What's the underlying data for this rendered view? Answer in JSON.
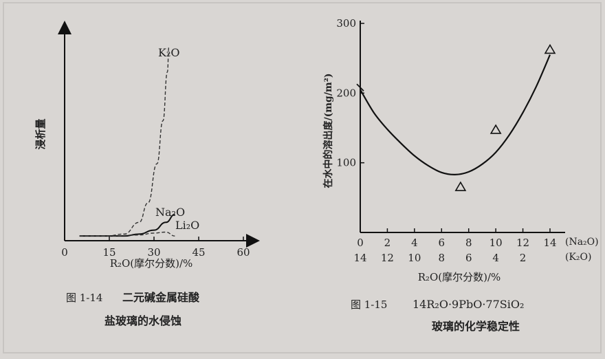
{
  "chart_data": [
    {
      "type": "line",
      "figure_caption_number": "图 1-14",
      "figure_caption_line1": "二元碱金属硅酸",
      "figure_caption_line2": "盐玻璃的水侵蚀",
      "xlabel": "R₂O(摩尔分数)/%",
      "ylabel": "浸析量",
      "x_ticks": [
        0,
        15,
        30,
        45,
        60
      ],
      "xlim": [
        0,
        60
      ],
      "ylim": [
        0,
        100
      ],
      "series": [
        {
          "name": "K₂O",
          "style": "dashed",
          "color": "#333333",
          "x": [
            5,
            14,
            20,
            25,
            28,
            31,
            33,
            34.5,
            35
          ],
          "y": [
            1,
            1,
            2,
            8,
            18,
            38,
            60,
            85,
            98
          ]
        },
        {
          "name": "Na₂O",
          "style": "solid",
          "color": "#111111",
          "x": [
            5,
            15,
            20,
            25,
            30,
            34,
            37
          ],
          "y": [
            1,
            1,
            1,
            2,
            4,
            8,
            12
          ]
        },
        {
          "name": "Li₂O",
          "style": "dashed",
          "color": "#333333",
          "x": [
            5,
            15,
            25,
            30,
            34,
            37
          ],
          "y": [
            1,
            1,
            1.5,
            2.5,
            3,
            1
          ]
        }
      ]
    },
    {
      "type": "scatter",
      "figure_caption_number": "图 1-15",
      "figure_caption_formula": "14R₂O·9PbO·77SiO₂",
      "figure_caption_line2": "玻璃的化学稳定性",
      "xlabel": "R₂O(摩尔分数)/%",
      "ylabel": "在水中的溶出度/(mg/m²)",
      "y_ticks": [
        100,
        200,
        300
      ],
      "ylim": [
        0,
        300
      ],
      "xlim": [
        0,
        14
      ],
      "x_ticks_top": [
        "0",
        "2",
        "4",
        "6",
        "8",
        "10",
        "12",
        "14"
      ],
      "x_ticks_bottom": [
        "14",
        "12",
        "10",
        "8",
        "6",
        "4",
        "2",
        ""
      ],
      "x_axis_label_top": "(Na₂O)",
      "x_axis_label_bottom": "(K₂O)",
      "curve": {
        "x": [
          0,
          1,
          2,
          3,
          4,
          5,
          6,
          7,
          8,
          9,
          10,
          11,
          12,
          13,
          14
        ],
        "y": [
          205,
          172,
          148,
          128,
          110,
          96,
          86,
          83,
          87,
          98,
          115,
          140,
          172,
          210,
          255
        ]
      },
      "markers_tick": {
        "x": [
          0,
          3
        ],
        "y": [
          208,
          128
        ]
      },
      "markers_triangle": {
        "x": [
          7.4,
          10,
          14
        ],
        "y": [
          65,
          147,
          262
        ]
      }
    }
  ]
}
